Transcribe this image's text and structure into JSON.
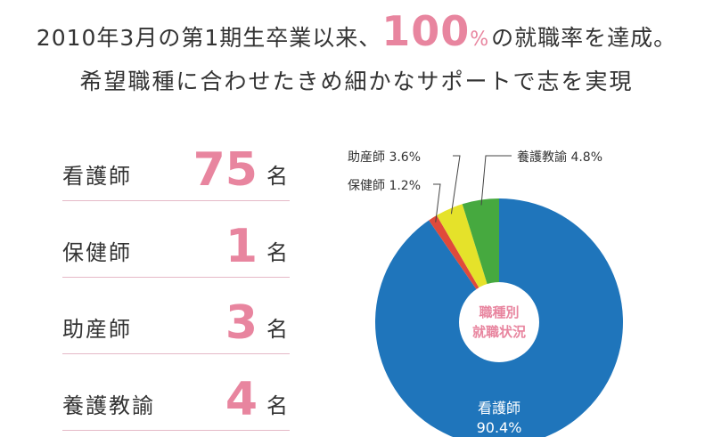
{
  "headline": {
    "line1_pre": "2010年3月の第1期生卒業以来、",
    "rate_value": "100",
    "rate_unit": "%",
    "line1_post": "の就職率を達成。",
    "line2": "希望職種に合わせたきめ細かなサポートで志を実現"
  },
  "stats": [
    {
      "label": "看護師",
      "value": "75",
      "unit": "名"
    },
    {
      "label": "保健師",
      "value": "1",
      "unit": "名"
    },
    {
      "label": "助産師",
      "value": "3",
      "unit": "名"
    },
    {
      "label": "養護教諭",
      "value": "4",
      "unit": "名"
    }
  ],
  "chart_data": {
    "type": "pie",
    "title": "職種別\n就職状況",
    "slices": [
      {
        "name": "看護師",
        "value": 90.4,
        "label": "看護師",
        "value_label": "90.4%",
        "color": "#1f75bb"
      },
      {
        "name": "保健師",
        "value": 1.2,
        "label": "保健師 1.2%",
        "color": "#e04a3b"
      },
      {
        "name": "助産師",
        "value": 3.6,
        "label": "助産師 3.6%",
        "color": "#e5e22a"
      },
      {
        "name": "養護教諭",
        "value": 4.8,
        "label": "養護教諭 4.8%",
        "color": "#46a93f"
      }
    ],
    "center_text_color": "#e8859f"
  }
}
